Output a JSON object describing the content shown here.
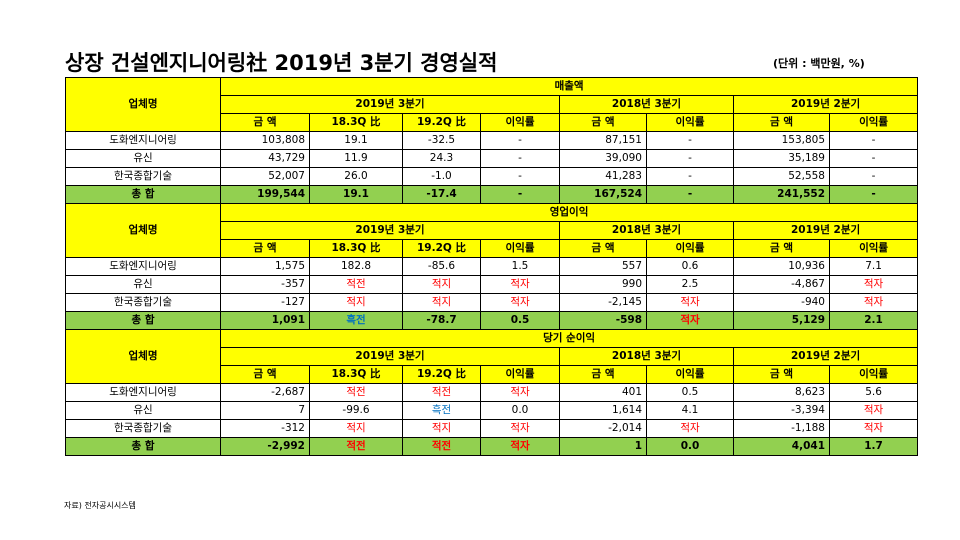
{
  "title": "상장 건설엔지니어링社 2019년 3분기 경영실적",
  "unit": "(단위 : 백만원, %)",
  "source": "자료) 전자공시시스템",
  "company_header": "업체명",
  "period_headers": [
    "2019년 3분기",
    "2018년 3분기",
    "2019년 2분기"
  ],
  "col_headers": [
    "금 액",
    "18.3Q 比",
    "19.2Q 比",
    "이익률",
    "금 액",
    "이익률",
    "금 액",
    "이익률"
  ],
  "sections": [
    {
      "title": "매출액",
      "rows": [
        {
          "name": "도화엔지니어링",
          "cells": [
            "103,808",
            "19.1",
            "-32.5",
            "-",
            "87,151",
            "-",
            "153,805",
            "-"
          ]
        },
        {
          "name": "유신",
          "cells": [
            "43,729",
            "11.9",
            "24.3",
            "-",
            "39,090",
            "-",
            "35,189",
            "-"
          ]
        },
        {
          "name": "한국종합기술",
          "cells": [
            "52,007",
            "26.0",
            "-1.0",
            "-",
            "41,283",
            "-",
            "52,558",
            "-"
          ]
        }
      ],
      "total": {
        "name": "총 합",
        "cells": [
          "199,544",
          "19.1",
          "-17.4",
          "-",
          "167,524",
          "-",
          "241,552",
          "-"
        ]
      }
    },
    {
      "title": "영업이익",
      "rows": [
        {
          "name": "도화엔지니어링",
          "cells": [
            "1,575",
            "182.8",
            "-85.6",
            "1.5",
            "557",
            "0.6",
            "10,936",
            "7.1"
          ]
        },
        {
          "name": "유신",
          "cells": [
            "-357",
            "적전",
            "적지",
            "적자",
            "990",
            "2.5",
            "-4,867",
            "적자"
          ]
        },
        {
          "name": "한국종합기술",
          "cells": [
            "-127",
            "적지",
            "적지",
            "적자",
            "-2,145",
            "적자",
            "-940",
            "적자"
          ]
        }
      ],
      "total": {
        "name": "총 합",
        "cells": [
          "1,091",
          "흑전",
          "-78.7",
          "0.5",
          "-598",
          "적자",
          "5,129",
          "2.1"
        ]
      }
    },
    {
      "title": "당기 순이익",
      "rows": [
        {
          "name": "도화엔지니어링",
          "cells": [
            "-2,687",
            "적전",
            "적전",
            "적자",
            "401",
            "0.5",
            "8,623",
            "5.6"
          ]
        },
        {
          "name": "유신",
          "cells": [
            "7",
            "-99.6",
            "흑전",
            "0.0",
            "1,614",
            "4.1",
            "-3,394",
            "적자"
          ]
        },
        {
          "name": "한국종합기술",
          "cells": [
            "-312",
            "적지",
            "적지",
            "적자",
            "-2,014",
            "적자",
            "-1,188",
            "적자"
          ]
        }
      ],
      "total": {
        "name": "총 합",
        "cells": [
          "-2,992",
          "적전",
          "적전",
          "적자",
          "1",
          "0.0",
          "4,041",
          "1.7"
        ]
      }
    }
  ],
  "colors": {
    "header_yellow": "#ffff00",
    "total_green": "#92d050",
    "negative_red": "#ff0000",
    "positive_blue": "#0070c0"
  }
}
